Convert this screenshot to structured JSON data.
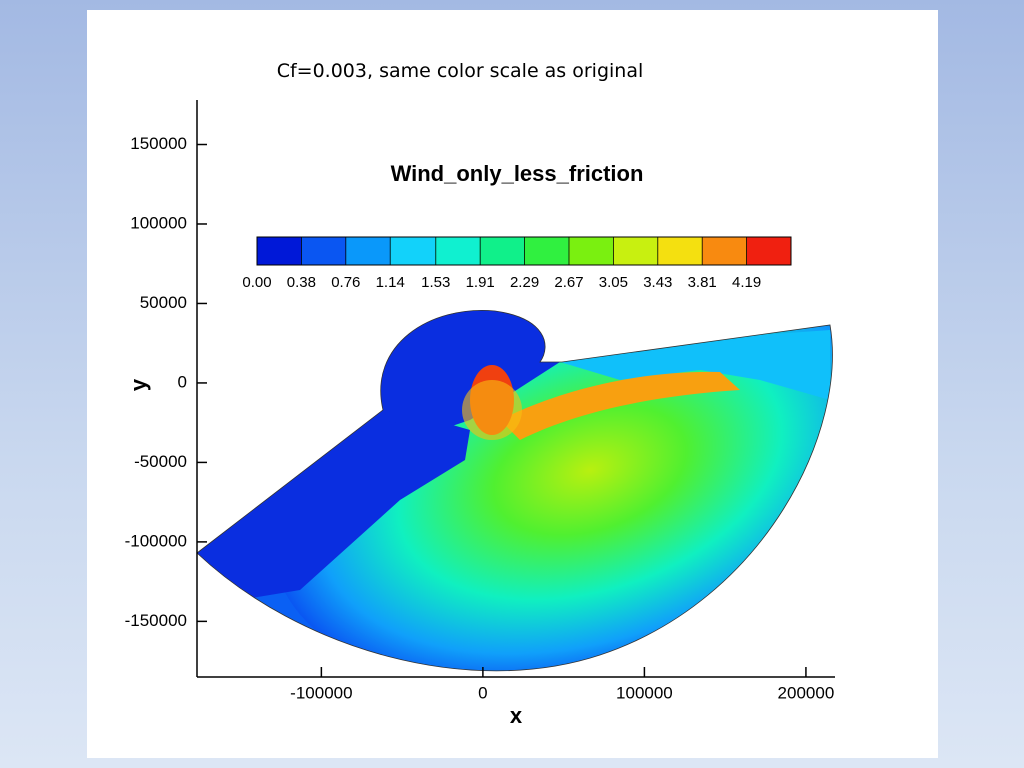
{
  "slide": {
    "subtitle": "Cf=0.003, same color scale as original"
  },
  "chart_data": {
    "type": "contour",
    "title": "Wind_only_less_friction",
    "xlabel": "x",
    "ylabel": "y",
    "xlim": [
      -177000,
      218000
    ],
    "ylim": [
      -185000,
      178000
    ],
    "xticks": [
      -100000,
      0,
      100000,
      200000
    ],
    "yticks": [
      150000,
      100000,
      50000,
      0,
      -50000,
      -100000,
      -150000
    ],
    "colorbar": {
      "clim": [
        0,
        4.57
      ],
      "ticks": [
        {
          "value": 0,
          "label": "0.00"
        },
        0.38,
        0.76,
        1.14,
        1.53,
        1.91,
        2.29,
        2.67,
        3.05,
        3.43,
        3.81,
        4.19
      ],
      "colors": [
        "#0018d8",
        "#0a56f2",
        "#0a98fa",
        "#12d2fa",
        "#10f0d0",
        "#10f08a",
        "#30f040",
        "#7af010",
        "#c8f010",
        "#f4e010",
        "#f88a10",
        "#f02010"
      ]
    }
  }
}
